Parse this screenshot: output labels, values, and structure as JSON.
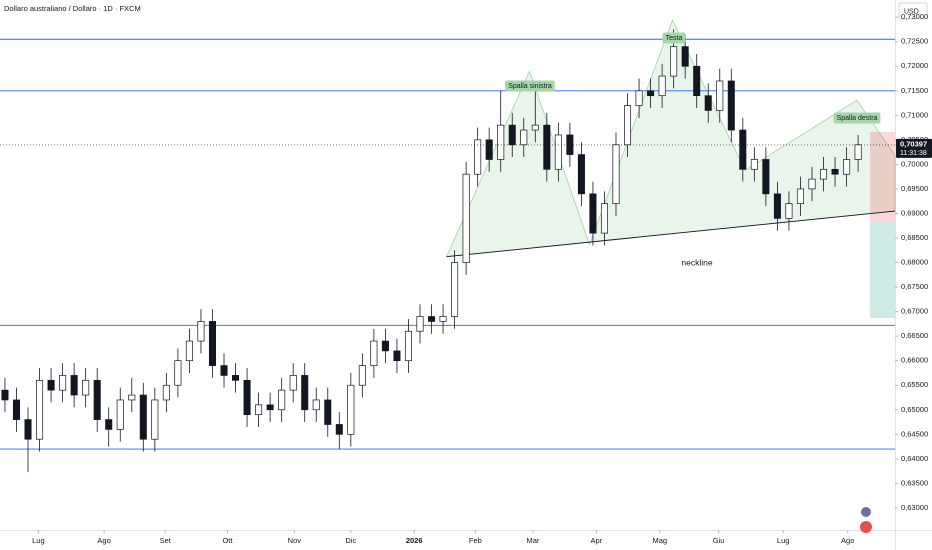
{
  "chart_data": {
    "type": "candlestick",
    "title": "Dollaro australiano / Dollaro · 1D · FXCM",
    "currency": "USD",
    "last_price": {
      "value": 0.70397,
      "label": "0,70397"
    },
    "countdown": "11:31:38",
    "xlim": [
      -0.43,
      77.2
    ],
    "ylim": [
      0.6255,
      0.7335
    ],
    "xticks": [
      {
        "value": 2.9,
        "label": "Lug"
      },
      {
        "value": 8.6,
        "label": "Ago"
      },
      {
        "value": 13.9,
        "label": "Set"
      },
      {
        "value": 19.3,
        "label": "Ott"
      },
      {
        "value": 25.1,
        "label": "Nov"
      },
      {
        "value": 30.0,
        "label": "Dic"
      },
      {
        "value": 35.5,
        "label": "2026"
      },
      {
        "value": 40.8,
        "label": "Feb"
      },
      {
        "value": 45.8,
        "label": "Mar"
      },
      {
        "value": 51.3,
        "label": "Apr"
      },
      {
        "value": 56.8,
        "label": "Mag"
      },
      {
        "value": 61.9,
        "label": "Giu"
      },
      {
        "value": 67.5,
        "label": "Lug"
      },
      {
        "value": 73.1,
        "label": "Ago"
      }
    ],
    "yticks": [
      {
        "value": 0.73,
        "label": "0,73000"
      },
      {
        "value": 0.725,
        "label": "0,72500"
      },
      {
        "value": 0.72,
        "label": "0,72000"
      },
      {
        "value": 0.715,
        "label": "0,71500"
      },
      {
        "value": 0.71,
        "label": "0,71000"
      },
      {
        "value": 0.705,
        "label": "0,70500"
      },
      {
        "value": 0.7,
        "label": "0,70000"
      },
      {
        "value": 0.695,
        "label": "0,69500"
      },
      {
        "value": 0.69,
        "label": "0,69000"
      },
      {
        "value": 0.685,
        "label": "0,68500"
      },
      {
        "value": 0.68,
        "label": "0,68000"
      },
      {
        "value": 0.675,
        "label": "0,67500"
      },
      {
        "value": 0.67,
        "label": "0,67000"
      },
      {
        "value": 0.665,
        "label": "0,66500"
      },
      {
        "value": 0.66,
        "label": "0,66000"
      },
      {
        "value": 0.655,
        "label": "0,65500"
      },
      {
        "value": 0.65,
        "label": "0,65000"
      },
      {
        "value": 0.645,
        "label": "0,64500"
      },
      {
        "value": 0.64,
        "label": "0,64000"
      },
      {
        "value": 0.635,
        "label": "0,63500"
      },
      {
        "value": 0.63,
        "label": "0,63000"
      }
    ],
    "up_color": "#ffffff",
    "down_color": "#131722",
    "hline_color": "#2962ff",
    "ohlc": [
      [
        0.654,
        0.6565,
        0.6495,
        0.652
      ],
      [
        0.652,
        0.6545,
        0.6455,
        0.648
      ],
      [
        0.648,
        0.6505,
        0.6373,
        0.644
      ],
      [
        0.644,
        0.6585,
        0.6415,
        0.656
      ],
      [
        0.656,
        0.6585,
        0.6515,
        0.654
      ],
      [
        0.654,
        0.6595,
        0.6515,
        0.657
      ],
      [
        0.657,
        0.6595,
        0.6505,
        0.653
      ],
      [
        0.653,
        0.6585,
        0.6505,
        0.656
      ],
      [
        0.656,
        0.6585,
        0.6455,
        0.648
      ],
      [
        0.648,
        0.6505,
        0.6425,
        0.646
      ],
      [
        0.646,
        0.6545,
        0.6435,
        0.652
      ],
      [
        0.652,
        0.6565,
        0.6495,
        0.653
      ],
      [
        0.653,
        0.6555,
        0.6415,
        0.644
      ],
      [
        0.644,
        0.6545,
        0.6415,
        0.652
      ],
      [
        0.652,
        0.6575,
        0.6495,
        0.655
      ],
      [
        0.655,
        0.6625,
        0.6525,
        0.66
      ],
      [
        0.66,
        0.6665,
        0.6575,
        0.664
      ],
      [
        0.664,
        0.6705,
        0.6615,
        0.668
      ],
      [
        0.668,
        0.6705,
        0.6565,
        0.659
      ],
      [
        0.659,
        0.6615,
        0.6545,
        0.657
      ],
      [
        0.657,
        0.6595,
        0.6535,
        0.656
      ],
      [
        0.656,
        0.6585,
        0.6465,
        0.649
      ],
      [
        0.649,
        0.6535,
        0.6465,
        0.651
      ],
      [
        0.651,
        0.6535,
        0.6475,
        0.65
      ],
      [
        0.65,
        0.6565,
        0.6475,
        0.654
      ],
      [
        0.654,
        0.6595,
        0.6515,
        0.657
      ],
      [
        0.657,
        0.6595,
        0.6475,
        0.65
      ],
      [
        0.65,
        0.6545,
        0.6475,
        0.652
      ],
      [
        0.652,
        0.6545,
        0.6445,
        0.647
      ],
      [
        0.647,
        0.6495,
        0.642,
        0.645
      ],
      [
        0.645,
        0.6575,
        0.6425,
        0.655
      ],
      [
        0.655,
        0.6615,
        0.6525,
        0.659
      ],
      [
        0.659,
        0.6665,
        0.6565,
        0.664
      ],
      [
        0.664,
        0.6665,
        0.6595,
        0.662
      ],
      [
        0.662,
        0.6645,
        0.6575,
        0.66
      ],
      [
        0.66,
        0.6685,
        0.6575,
        0.666
      ],
      [
        0.666,
        0.6715,
        0.6635,
        0.669
      ],
      [
        0.669,
        0.6715,
        0.6655,
        0.668
      ],
      [
        0.668,
        0.6715,
        0.6655,
        0.669
      ],
      [
        0.669,
        0.6825,
        0.6665,
        0.68
      ],
      [
        0.68,
        0.7005,
        0.6775,
        0.698
      ],
      [
        0.698,
        0.7075,
        0.6955,
        0.705
      ],
      [
        0.705,
        0.7075,
        0.6985,
        0.701
      ],
      [
        0.701,
        0.715,
        0.6985,
        0.708
      ],
      [
        0.708,
        0.7105,
        0.7015,
        0.704
      ],
      [
        0.704,
        0.7095,
        0.7015,
        0.707
      ],
      [
        0.707,
        0.715,
        0.7045,
        0.708
      ],
      [
        0.708,
        0.7105,
        0.6965,
        0.699
      ],
      [
        0.699,
        0.7085,
        0.6965,
        0.706
      ],
      [
        0.706,
        0.7085,
        0.6995,
        0.702
      ],
      [
        0.702,
        0.7045,
        0.6915,
        0.694
      ],
      [
        0.694,
        0.6965,
        0.6835,
        0.686
      ],
      [
        0.686,
        0.6945,
        0.6835,
        0.692
      ],
      [
        0.692,
        0.7065,
        0.6895,
        0.704
      ],
      [
        0.704,
        0.7145,
        0.7015,
        0.712
      ],
      [
        0.712,
        0.7175,
        0.7095,
        0.715
      ],
      [
        0.715,
        0.7175,
        0.7115,
        0.714
      ],
      [
        0.714,
        0.7205,
        0.7115,
        0.718
      ],
      [
        0.718,
        0.7275,
        0.7155,
        0.724
      ],
      [
        0.724,
        0.7265,
        0.7175,
        0.72
      ],
      [
        0.72,
        0.7225,
        0.7115,
        0.714
      ],
      [
        0.714,
        0.7165,
        0.7085,
        0.711
      ],
      [
        0.711,
        0.7195,
        0.7085,
        0.717
      ],
      [
        0.717,
        0.7195,
        0.7045,
        0.707
      ],
      [
        0.707,
        0.7095,
        0.6965,
        0.699
      ],
      [
        0.699,
        0.7035,
        0.6965,
        0.701
      ],
      [
        0.701,
        0.7035,
        0.6915,
        0.694
      ],
      [
        0.694,
        0.6965,
        0.6865,
        0.689
      ],
      [
        0.689,
        0.6945,
        0.6865,
        0.692
      ],
      [
        0.692,
        0.6975,
        0.6895,
        0.695
      ],
      [
        0.695,
        0.6995,
        0.6925,
        0.697
      ],
      [
        0.697,
        0.7015,
        0.6945,
        0.699
      ],
      [
        0.699,
        0.7015,
        0.6955,
        0.698
      ],
      [
        0.698,
        0.7035,
        0.6955,
        0.701
      ],
      [
        0.701,
        0.706,
        0.6985,
        0.704
      ]
    ],
    "hlines": [
      0.7255,
      0.715,
      0.6672,
      0.642
    ],
    "neckline": {
      "label": "neckline",
      "x": [
        38.3,
        77.2
      ],
      "y": [
        0.6812,
        0.6905
      ]
    },
    "pattern": {
      "x": [
        38.3,
        45.5,
        50.7,
        57.9,
        64.2,
        73.9,
        77.2
      ],
      "y": [
        0.6812,
        0.719,
        0.6837,
        0.7294,
        0.6988,
        0.7131,
        0.7018
      ]
    },
    "annotations": [
      "Spalla sinistra",
      "Testa",
      "Spalla destra"
    ],
    "position": {
      "stop": 0.7066,
      "entry": 0.6884,
      "target": 0.6687
    }
  }
}
